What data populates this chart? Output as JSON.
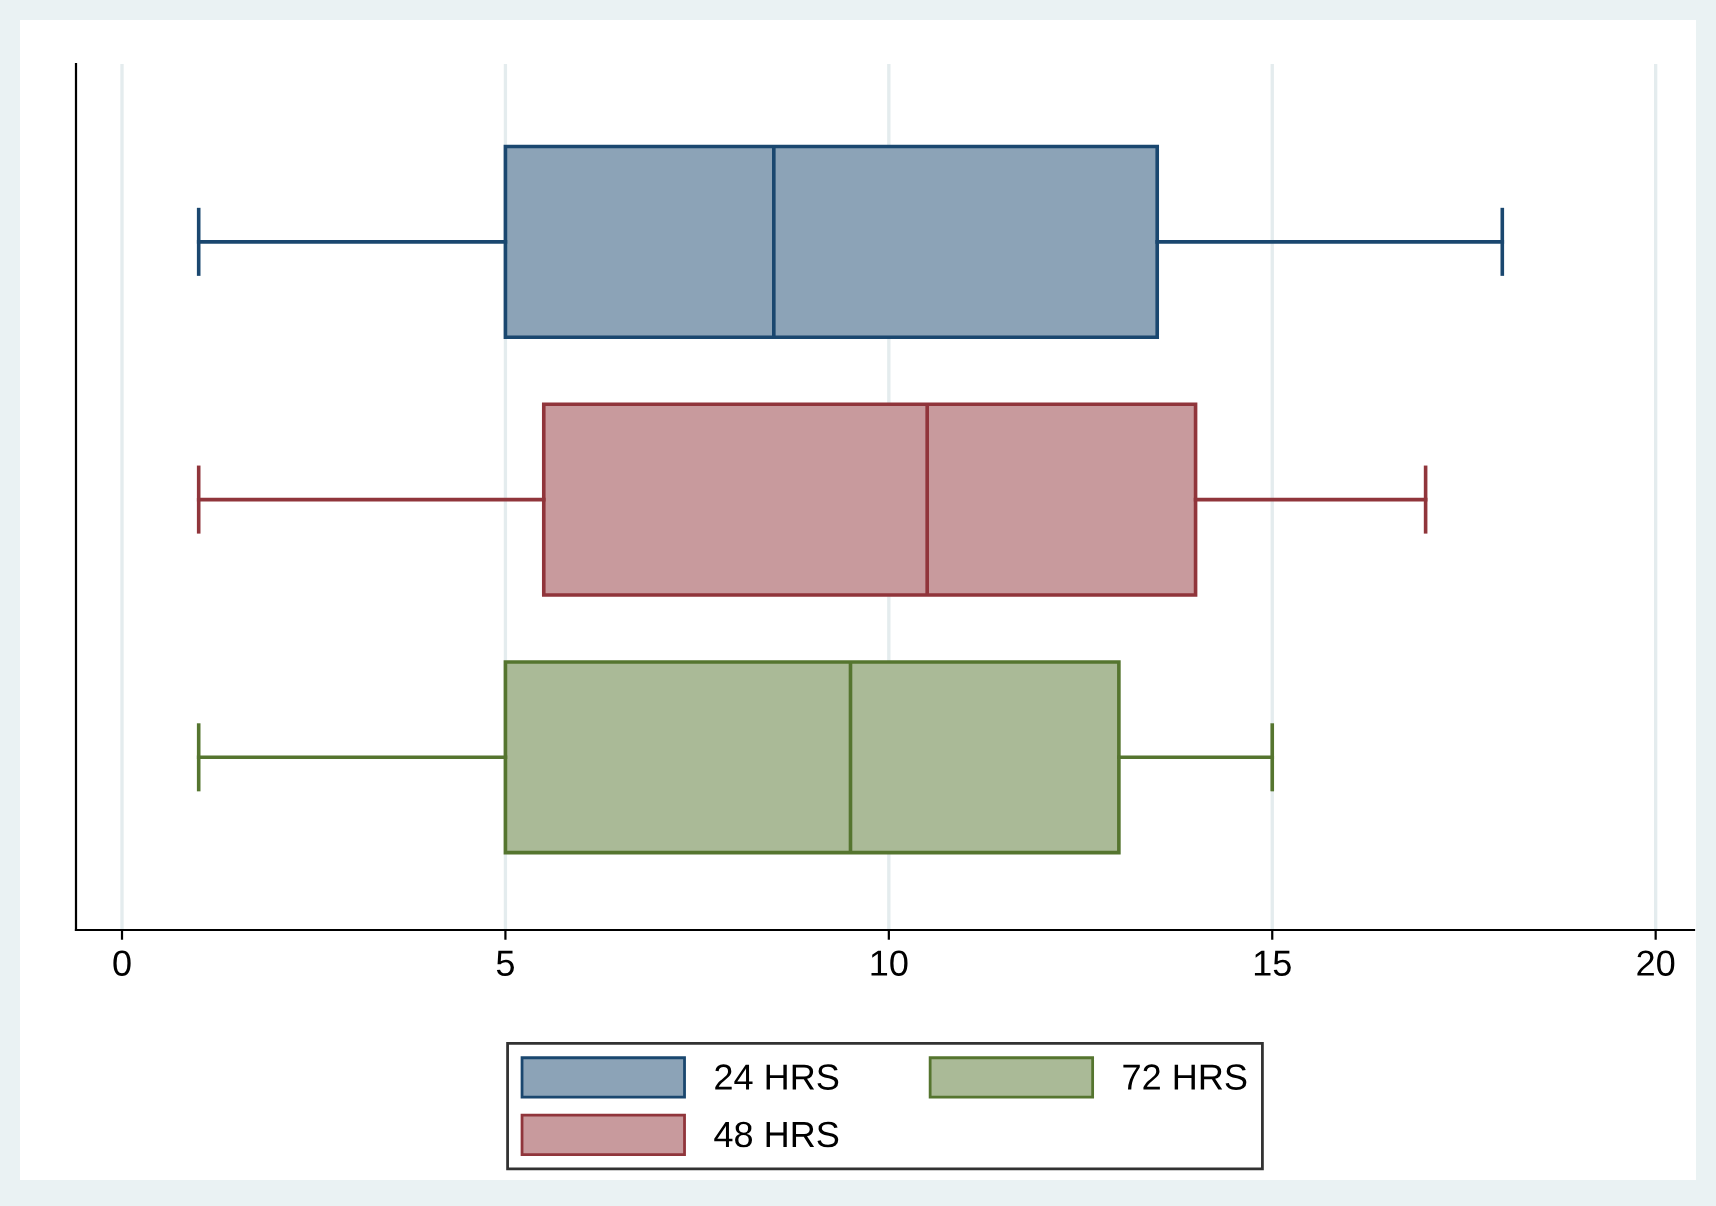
{
  "chart_data": {
    "type": "box",
    "orientation": "horizontal",
    "categories": [
      null,
      null,
      null
    ],
    "series": [
      {
        "name": "24 HRS",
        "color": "#1a476f",
        "boxes": [
          {
            "low": 1,
            "q1": 5,
            "median": 8.5,
            "q3": 13.5,
            "high": 18
          },
          null,
          null
        ]
      },
      {
        "name": "48 HRS",
        "color": "#90353b",
        "boxes": [
          null,
          {
            "low": 1,
            "q1": 5.5,
            "median": 10.5,
            "q3": 14,
            "high": 17
          },
          null
        ]
      },
      {
        "name": "72 HRS",
        "color": "#55752f",
        "boxes": [
          null,
          null,
          {
            "low": 1,
            "q1": 5,
            "median": 9.5,
            "q3": 13,
            "high": 15
          }
        ]
      }
    ],
    "xlim": [
      -0.6,
      20.5
    ],
    "xticks": [
      0,
      5,
      10,
      15,
      20
    ],
    "grid": "x",
    "legend": "bottom"
  }
}
